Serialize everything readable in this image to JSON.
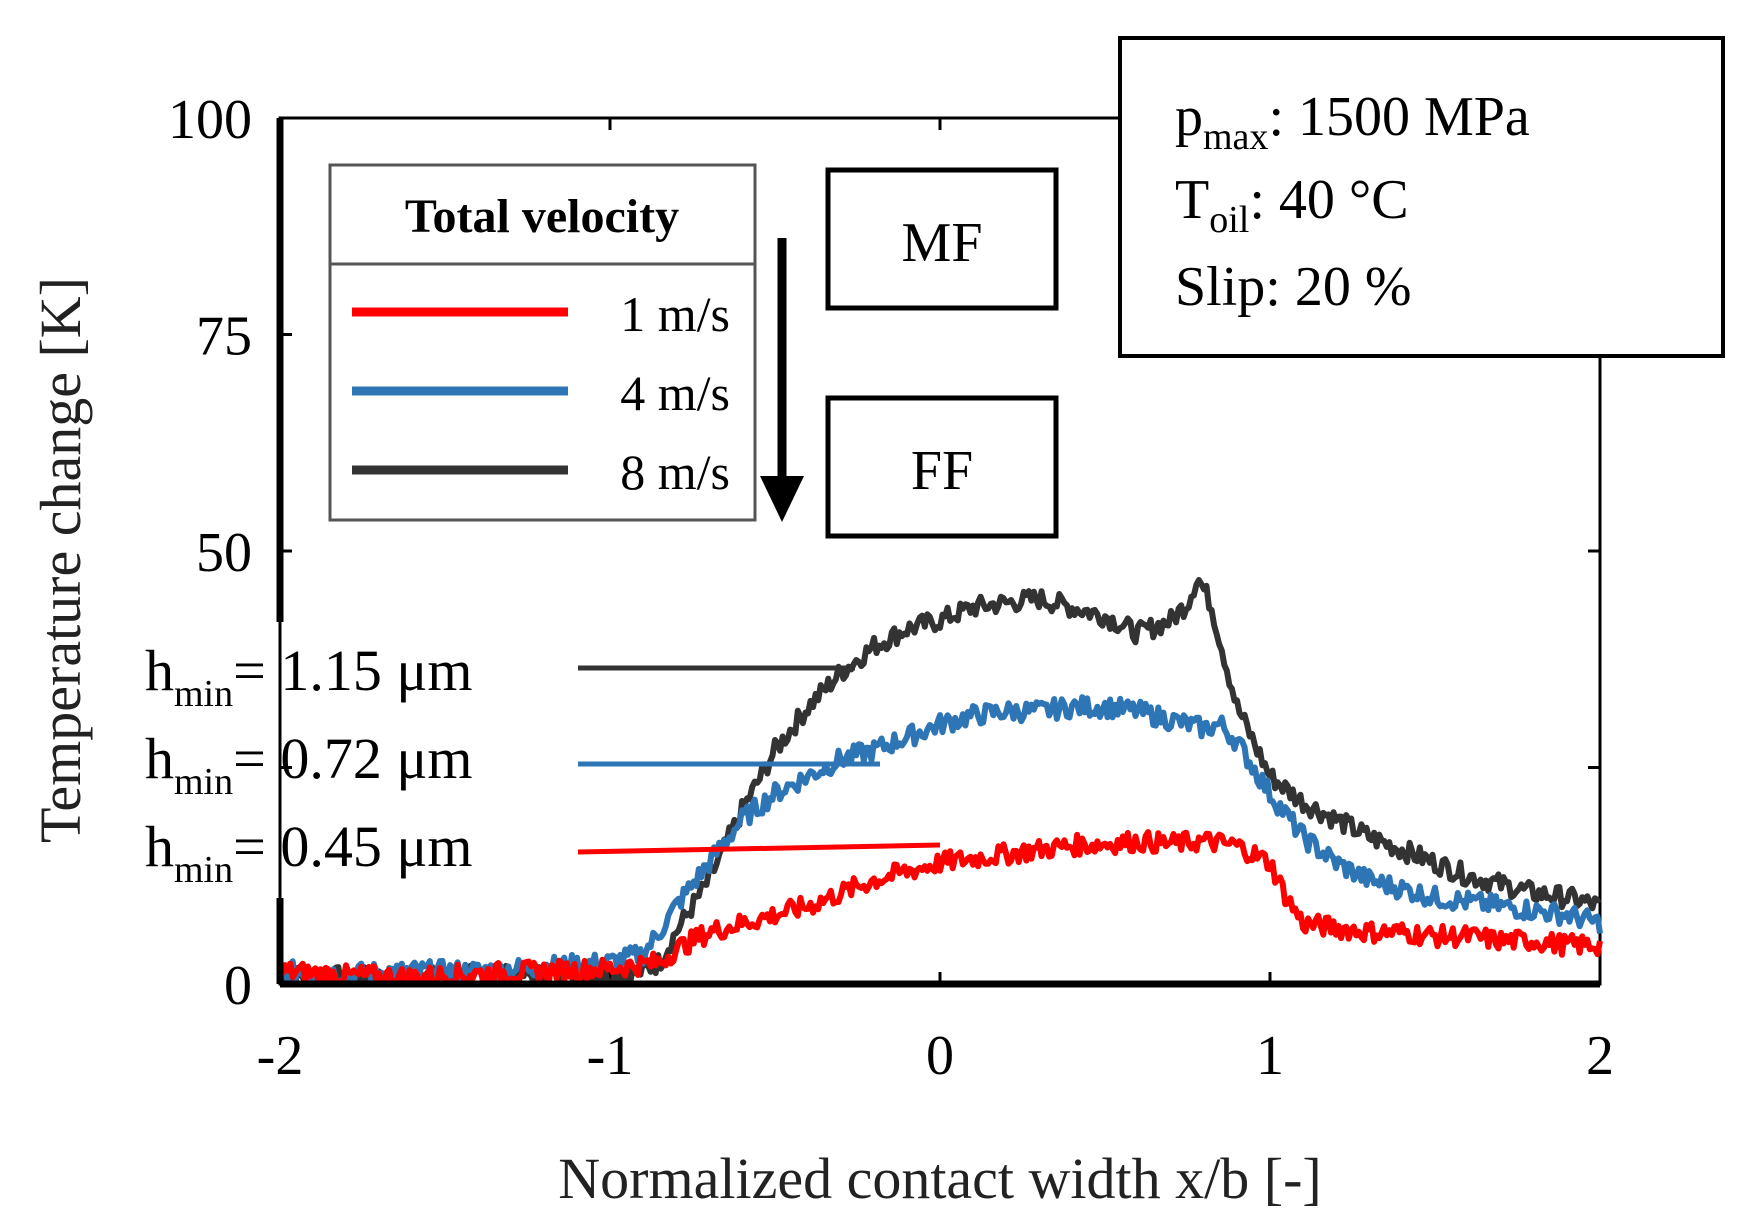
{
  "chart_data": {
    "type": "line",
    "xlabel": "Normalized contact width x/b [-]",
    "ylabel": "Temperature change [K]",
    "xlim": [
      -2,
      2
    ],
    "ylim": [
      0,
      100
    ],
    "xticks": [
      "-2",
      "-1",
      "0",
      "1",
      "2"
    ],
    "xtick_values": [
      -2,
      -1,
      0,
      1,
      2
    ],
    "yticks": [
      "0",
      "50",
      "75",
      "100"
    ],
    "ytick_values": [
      0,
      50,
      75,
      100
    ],
    "legend": {
      "title": "Total velocity",
      "position": "top-left"
    },
    "series": [
      {
        "name": "1 m/s",
        "color": "#ff0000",
        "hmin_label": "= 0.45 μm",
        "x": [
          -2,
          -1.8,
          -1.6,
          -1.4,
          -1.2,
          -1.0,
          -0.85,
          -0.8,
          -0.7,
          -0.6,
          -0.5,
          -0.4,
          -0.3,
          -0.2,
          -0.1,
          0.0,
          0.1,
          0.2,
          0.3,
          0.4,
          0.5,
          0.6,
          0.7,
          0.8,
          0.9,
          1.0,
          1.05,
          1.1,
          1.2,
          1.3,
          1.4,
          1.5,
          1.6,
          1.7,
          1.8,
          1.9,
          2.0
        ],
        "y": [
          1.5,
          1.0,
          0.8,
          1.2,
          1.5,
          1.8,
          2.5,
          4,
          6,
          7,
          8,
          9,
          10.5,
          12,
          13,
          14,
          14.5,
          15,
          15.5,
          16,
          16.2,
          16.5,
          16.2,
          16.5,
          16,
          14,
          10,
          7,
          6.5,
          6,
          6,
          5.5,
          5.5,
          5,
          5,
          4.5,
          4.5
        ]
      },
      {
        "name": "4 m/s",
        "color": "#2e75b6",
        "hmin_label": "= 0.72 μm",
        "x": [
          -2,
          -1.8,
          -1.6,
          -1.4,
          -1.2,
          -1.0,
          -0.9,
          -0.85,
          -0.8,
          -0.7,
          -0.6,
          -0.5,
          -0.4,
          -0.3,
          -0.2,
          -0.1,
          0.0,
          0.1,
          0.2,
          0.3,
          0.4,
          0.5,
          0.6,
          0.7,
          0.8,
          0.85,
          0.9,
          1.0,
          1.1,
          1.2,
          1.3,
          1.4,
          1.5,
          1.6,
          1.7,
          1.8,
          1.9,
          2.0
        ],
        "y": [
          1.5,
          1.2,
          1.5,
          1.5,
          2.0,
          2.5,
          3.5,
          6,
          9,
          14,
          19,
          22,
          24,
          26,
          27,
          28.5,
          30,
          31,
          31.5,
          31.5,
          32,
          32,
          31.5,
          30.5,
          29.5,
          30,
          28,
          22,
          17,
          14,
          12,
          11,
          10,
          9.5,
          9,
          8.5,
          8,
          7
        ]
      },
      {
        "name": "8 m/s",
        "color": "#333333",
        "hmin_label": "= 1.15 μm",
        "x": [
          -2,
          -1.8,
          -1.6,
          -1.4,
          -1.2,
          -1.0,
          -0.9,
          -0.85,
          -0.8,
          -0.7,
          -0.6,
          -0.5,
          -0.4,
          -0.3,
          -0.2,
          -0.1,
          0.0,
          0.1,
          0.2,
          0.3,
          0.4,
          0.5,
          0.6,
          0.7,
          0.75,
          0.78,
          0.82,
          0.9,
          1.0,
          1.1,
          1.2,
          1.3,
          1.4,
          1.5,
          1.6,
          1.7,
          1.8,
          1.9,
          2.0
        ],
        "y": [
          1.0,
          0.8,
          0.8,
          1.0,
          1.0,
          1.0,
          1.5,
          2.5,
          6,
          12,
          20,
          27,
          32,
          36,
          39,
          41,
          42,
          43.5,
          44,
          44.5,
          43.5,
          42.5,
          40.5,
          42,
          44,
          47,
          44,
          32,
          24,
          21,
          19,
          17,
          15.5,
          14,
          12.5,
          11.5,
          10.5,
          10,
          9
        ]
      }
    ],
    "annotations": {
      "hmin_prefix": "h",
      "hmin_sub": "min",
      "arrow_top_label": "MF",
      "arrow_bottom_label": "FF",
      "conditions": {
        "p_main": "p",
        "p_sub": "max",
        "p_value": ": 1500 MPa",
        "t_main": "T",
        "t_sub": "oil",
        "t_value": ": 40 °C",
        "slip": "Slip: 20 %"
      }
    }
  }
}
